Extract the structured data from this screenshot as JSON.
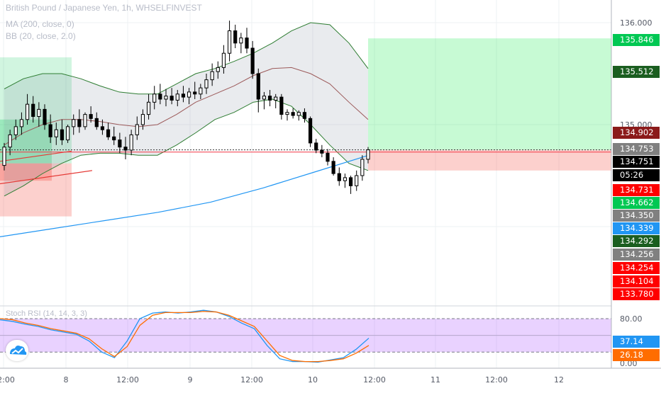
{
  "header": {
    "symbol_line": "British Pound / Japanese Yen, 1h, WHSELFINVEST",
    "ma_line": "MA (200, close, 0)",
    "bb_line": "BB (20, close, 2.0)",
    "osc_line": "Stoch RSI (14, 14, 3, 3)"
  },
  "chart_data": [
    {
      "type": "candlestick",
      "title": "British Pound / Japanese Yen, 1h, WHSELFINVEST",
      "x_tick_labels": [
        "12:00",
        "8",
        "12:00",
        "9",
        "12:00",
        "10",
        "12:00",
        "11",
        "12:00",
        "12"
      ],
      "y_tick_labels": [
        "136.000",
        "135.000"
      ],
      "ylim": [
        133.6,
        136.2
      ],
      "grid": true,
      "candles": [
        {
          "o": 134.6,
          "h": 134.82,
          "l": 134.55,
          "c": 134.78
        },
        {
          "o": 134.78,
          "h": 134.95,
          "l": 134.7,
          "c": 134.9
        },
        {
          "o": 134.9,
          "h": 135.05,
          "l": 134.85,
          "c": 134.98
        },
        {
          "o": 134.98,
          "h": 135.12,
          "l": 134.9,
          "c": 135.05
        },
        {
          "o": 135.05,
          "h": 135.3,
          "l": 135.0,
          "c": 135.2
        },
        {
          "o": 135.2,
          "h": 135.28,
          "l": 135.02,
          "c": 135.08
        },
        {
          "o": 135.08,
          "h": 135.22,
          "l": 134.98,
          "c": 135.15
        },
        {
          "o": 135.15,
          "h": 135.2,
          "l": 134.95,
          "c": 135.0
        },
        {
          "o": 135.0,
          "h": 135.1,
          "l": 134.82,
          "c": 134.88
        },
        {
          "o": 134.88,
          "h": 135.02,
          "l": 134.8,
          "c": 134.95
        },
        {
          "o": 134.95,
          "h": 135.05,
          "l": 134.8,
          "c": 134.85
        },
        {
          "o": 134.85,
          "h": 135.0,
          "l": 134.82,
          "c": 134.98
        },
        {
          "o": 134.98,
          "h": 135.1,
          "l": 134.9,
          "c": 135.05
        },
        {
          "o": 135.05,
          "h": 135.15,
          "l": 134.92,
          "c": 134.98
        },
        {
          "o": 134.98,
          "h": 135.12,
          "l": 134.95,
          "c": 135.1
        },
        {
          "o": 135.1,
          "h": 135.18,
          "l": 135.02,
          "c": 135.06
        },
        {
          "o": 135.06,
          "h": 135.12,
          "l": 134.95,
          "c": 134.98
        },
        {
          "o": 134.98,
          "h": 135.05,
          "l": 134.9,
          "c": 134.95
        },
        {
          "o": 134.95,
          "h": 135.02,
          "l": 134.85,
          "c": 134.88
        },
        {
          "o": 134.88,
          "h": 134.98,
          "l": 134.8,
          "c": 134.85
        },
        {
          "o": 134.85,
          "h": 134.92,
          "l": 134.72,
          "c": 134.78
        },
        {
          "o": 134.78,
          "h": 134.88,
          "l": 134.66,
          "c": 134.75
        },
        {
          "o": 134.75,
          "h": 134.95,
          "l": 134.7,
          "c": 134.9
        },
        {
          "o": 134.9,
          "h": 135.08,
          "l": 134.85,
          "c": 135.0
        },
        {
          "o": 135.0,
          "h": 135.15,
          "l": 134.95,
          "c": 135.1
        },
        {
          "o": 135.1,
          "h": 135.3,
          "l": 135.05,
          "c": 135.22
        },
        {
          "o": 135.22,
          "h": 135.38,
          "l": 135.15,
          "c": 135.3
        },
        {
          "o": 135.3,
          "h": 135.4,
          "l": 135.2,
          "c": 135.25
        },
        {
          "o": 135.25,
          "h": 135.35,
          "l": 135.18,
          "c": 135.28
        },
        {
          "o": 135.28,
          "h": 135.36,
          "l": 135.2,
          "c": 135.24
        },
        {
          "o": 135.24,
          "h": 135.34,
          "l": 135.18,
          "c": 135.3
        },
        {
          "o": 135.3,
          "h": 135.38,
          "l": 135.22,
          "c": 135.27
        },
        {
          "o": 135.27,
          "h": 135.36,
          "l": 135.2,
          "c": 135.32
        },
        {
          "o": 135.32,
          "h": 135.42,
          "l": 135.25,
          "c": 135.3
        },
        {
          "o": 135.3,
          "h": 135.4,
          "l": 135.25,
          "c": 135.36
        },
        {
          "o": 135.36,
          "h": 135.5,
          "l": 135.3,
          "c": 135.44
        },
        {
          "o": 135.44,
          "h": 135.6,
          "l": 135.38,
          "c": 135.52
        },
        {
          "o": 135.52,
          "h": 135.62,
          "l": 135.45,
          "c": 135.56
        },
        {
          "o": 135.56,
          "h": 135.78,
          "l": 135.5,
          "c": 135.7
        },
        {
          "o": 135.7,
          "h": 136.02,
          "l": 135.62,
          "c": 135.92
        },
        {
          "o": 135.92,
          "h": 135.98,
          "l": 135.75,
          "c": 135.8
        },
        {
          "o": 135.8,
          "h": 135.9,
          "l": 135.7,
          "c": 135.85
        },
        {
          "o": 135.85,
          "h": 135.95,
          "l": 135.7,
          "c": 135.75
        },
        {
          "o": 135.75,
          "h": 135.82,
          "l": 135.45,
          "c": 135.5
        },
        {
          "o": 135.5,
          "h": 135.55,
          "l": 135.12,
          "c": 135.25
        },
        {
          "o": 135.25,
          "h": 135.32,
          "l": 135.15,
          "c": 135.28
        },
        {
          "o": 135.28,
          "h": 135.34,
          "l": 135.18,
          "c": 135.24
        },
        {
          "o": 135.24,
          "h": 135.3,
          "l": 135.16,
          "c": 135.27
        },
        {
          "o": 135.27,
          "h": 135.3,
          "l": 135.05,
          "c": 135.1
        },
        {
          "o": 135.1,
          "h": 135.15,
          "l": 135.04,
          "c": 135.12
        },
        {
          "o": 135.12,
          "h": 135.16,
          "l": 135.06,
          "c": 135.09
        },
        {
          "o": 135.09,
          "h": 135.14,
          "l": 135.04,
          "c": 135.12
        },
        {
          "o": 135.12,
          "h": 135.16,
          "l": 135.02,
          "c": 135.06
        },
        {
          "o": 135.06,
          "h": 135.08,
          "l": 134.78,
          "c": 134.82
        },
        {
          "o": 134.82,
          "h": 134.86,
          "l": 134.72,
          "c": 134.75
        },
        {
          "o": 134.75,
          "h": 134.8,
          "l": 134.68,
          "c": 134.72
        },
        {
          "o": 134.72,
          "h": 134.76,
          "l": 134.6,
          "c": 134.64
        },
        {
          "o": 134.64,
          "h": 134.68,
          "l": 134.5,
          "c": 134.52
        },
        {
          "o": 134.52,
          "h": 134.58,
          "l": 134.4,
          "c": 134.45
        },
        {
          "o": 134.45,
          "h": 134.52,
          "l": 134.38,
          "c": 134.48
        },
        {
          "o": 134.48,
          "h": 134.5,
          "l": 134.32,
          "c": 134.4
        },
        {
          "o": 134.4,
          "h": 134.55,
          "l": 134.35,
          "c": 134.5
        },
        {
          "o": 134.5,
          "h": 134.7,
          "l": 134.45,
          "c": 134.66
        },
        {
          "o": 134.66,
          "h": 134.78,
          "l": 134.62,
          "c": 134.753
        }
      ],
      "bollinger": {
        "upper": [
          135.35,
          135.45,
          135.5,
          135.5,
          135.45,
          135.38,
          135.32,
          135.3,
          135.3,
          135.4,
          135.5,
          135.55,
          135.62,
          135.7,
          135.8,
          135.92,
          136.0,
          135.98,
          135.8,
          135.55
        ],
        "middle": [
          134.8,
          134.92,
          135.0,
          135.05,
          135.05,
          135.03,
          135.0,
          134.98,
          135.0,
          135.1,
          135.22,
          135.3,
          135.38,
          135.48,
          135.55,
          135.56,
          135.5,
          135.4,
          135.22,
          135.05
        ],
        "lower": [
          134.3,
          134.4,
          134.52,
          134.62,
          134.7,
          134.72,
          134.72,
          134.7,
          134.7,
          134.8,
          134.92,
          135.05,
          135.12,
          135.22,
          135.25,
          135.18,
          135.0,
          134.8,
          134.62,
          134.55
        ]
      },
      "ma200": [
        133.9,
        133.98,
        134.06,
        134.14,
        134.24,
        134.38,
        134.54,
        134.7
      ],
      "positions": {
        "left_long": {
          "entry": 134.62,
          "target": 135.66,
          "stop": 134.1
        },
        "left_short": {
          "entry": 134.62,
          "stop": 134.45
        },
        "right_long": {
          "entry": 134.753,
          "target": 135.846,
          "stop": 134.55
        }
      },
      "horizontal_lines": [
        {
          "value": 134.731,
          "color": "#f23645",
          "style": "solid"
        },
        {
          "value": 134.753,
          "color": "#333333",
          "style": "dotted"
        }
      ],
      "price_tags": [
        {
          "value": 135.846,
          "text": "135.846",
          "bg": "#00c853"
        },
        {
          "value": 135.512,
          "text": "135.512",
          "bg": "#1b5e20"
        },
        {
          "value": 134.902,
          "text": "134.902",
          "bg": "#8b1a1a"
        },
        {
          "value": 134.753,
          "text": "134.753",
          "bg": "#808080"
        },
        {
          "value": 134.751,
          "text": "134.751",
          "bg": "#000000"
        },
        {
          "value": 134.735,
          "text": "05:26",
          "bg": "#000000"
        },
        {
          "value": 134.731,
          "text": "134.731",
          "bg": "#ff0000"
        },
        {
          "value": 134.662,
          "text": "134.662",
          "bg": "#00c853"
        },
        {
          "value": 134.35,
          "text": "134.350",
          "bg": "#808080"
        },
        {
          "value": 134.339,
          "text": "134.339",
          "bg": "#2196f3"
        },
        {
          "value": 134.292,
          "text": "134.292",
          "bg": "#1b5e20"
        },
        {
          "value": 134.256,
          "text": "134.256",
          "bg": "#808080"
        },
        {
          "value": 134.254,
          "text": "134.254",
          "bg": "#ff0000"
        },
        {
          "value": 134.104,
          "text": "134.104",
          "bg": "#ff0000"
        },
        {
          "value": 133.78,
          "text": "133.780",
          "bg": "#ff0000"
        }
      ]
    },
    {
      "type": "line",
      "title": "Stoch RSI (14, 14, 3, 3)",
      "ylim": [
        0,
        100
      ],
      "y_tick_labels": [
        "80.00",
        "0.00"
      ],
      "bands": [
        20,
        80
      ],
      "series": [
        {
          "name": "K",
          "color": "#2196f3",
          "values": [
            78,
            75,
            70,
            66,
            60,
            56,
            52,
            40,
            20,
            10,
            40,
            80,
            90,
            92,
            90,
            92,
            95,
            92,
            84,
            72,
            62,
            32,
            8,
            3,
            3,
            2,
            6,
            10,
            25,
            45
          ]
        },
        {
          "name": "D",
          "color": "#ff6d00",
          "values": [
            80,
            78,
            72,
            68,
            62,
            58,
            54,
            44,
            26,
            12,
            30,
            68,
            86,
            91,
            91,
            91,
            93,
            92,
            86,
            76,
            66,
            40,
            14,
            5,
            3,
            3,
            5,
            8,
            18,
            32
          ]
        }
      ],
      "tags": [
        {
          "value": 37.14,
          "text": "37.14",
          "bg": "#2196f3"
        },
        {
          "value": 26.18,
          "text": "26.18",
          "bg": "#ff6d00"
        }
      ]
    }
  ]
}
